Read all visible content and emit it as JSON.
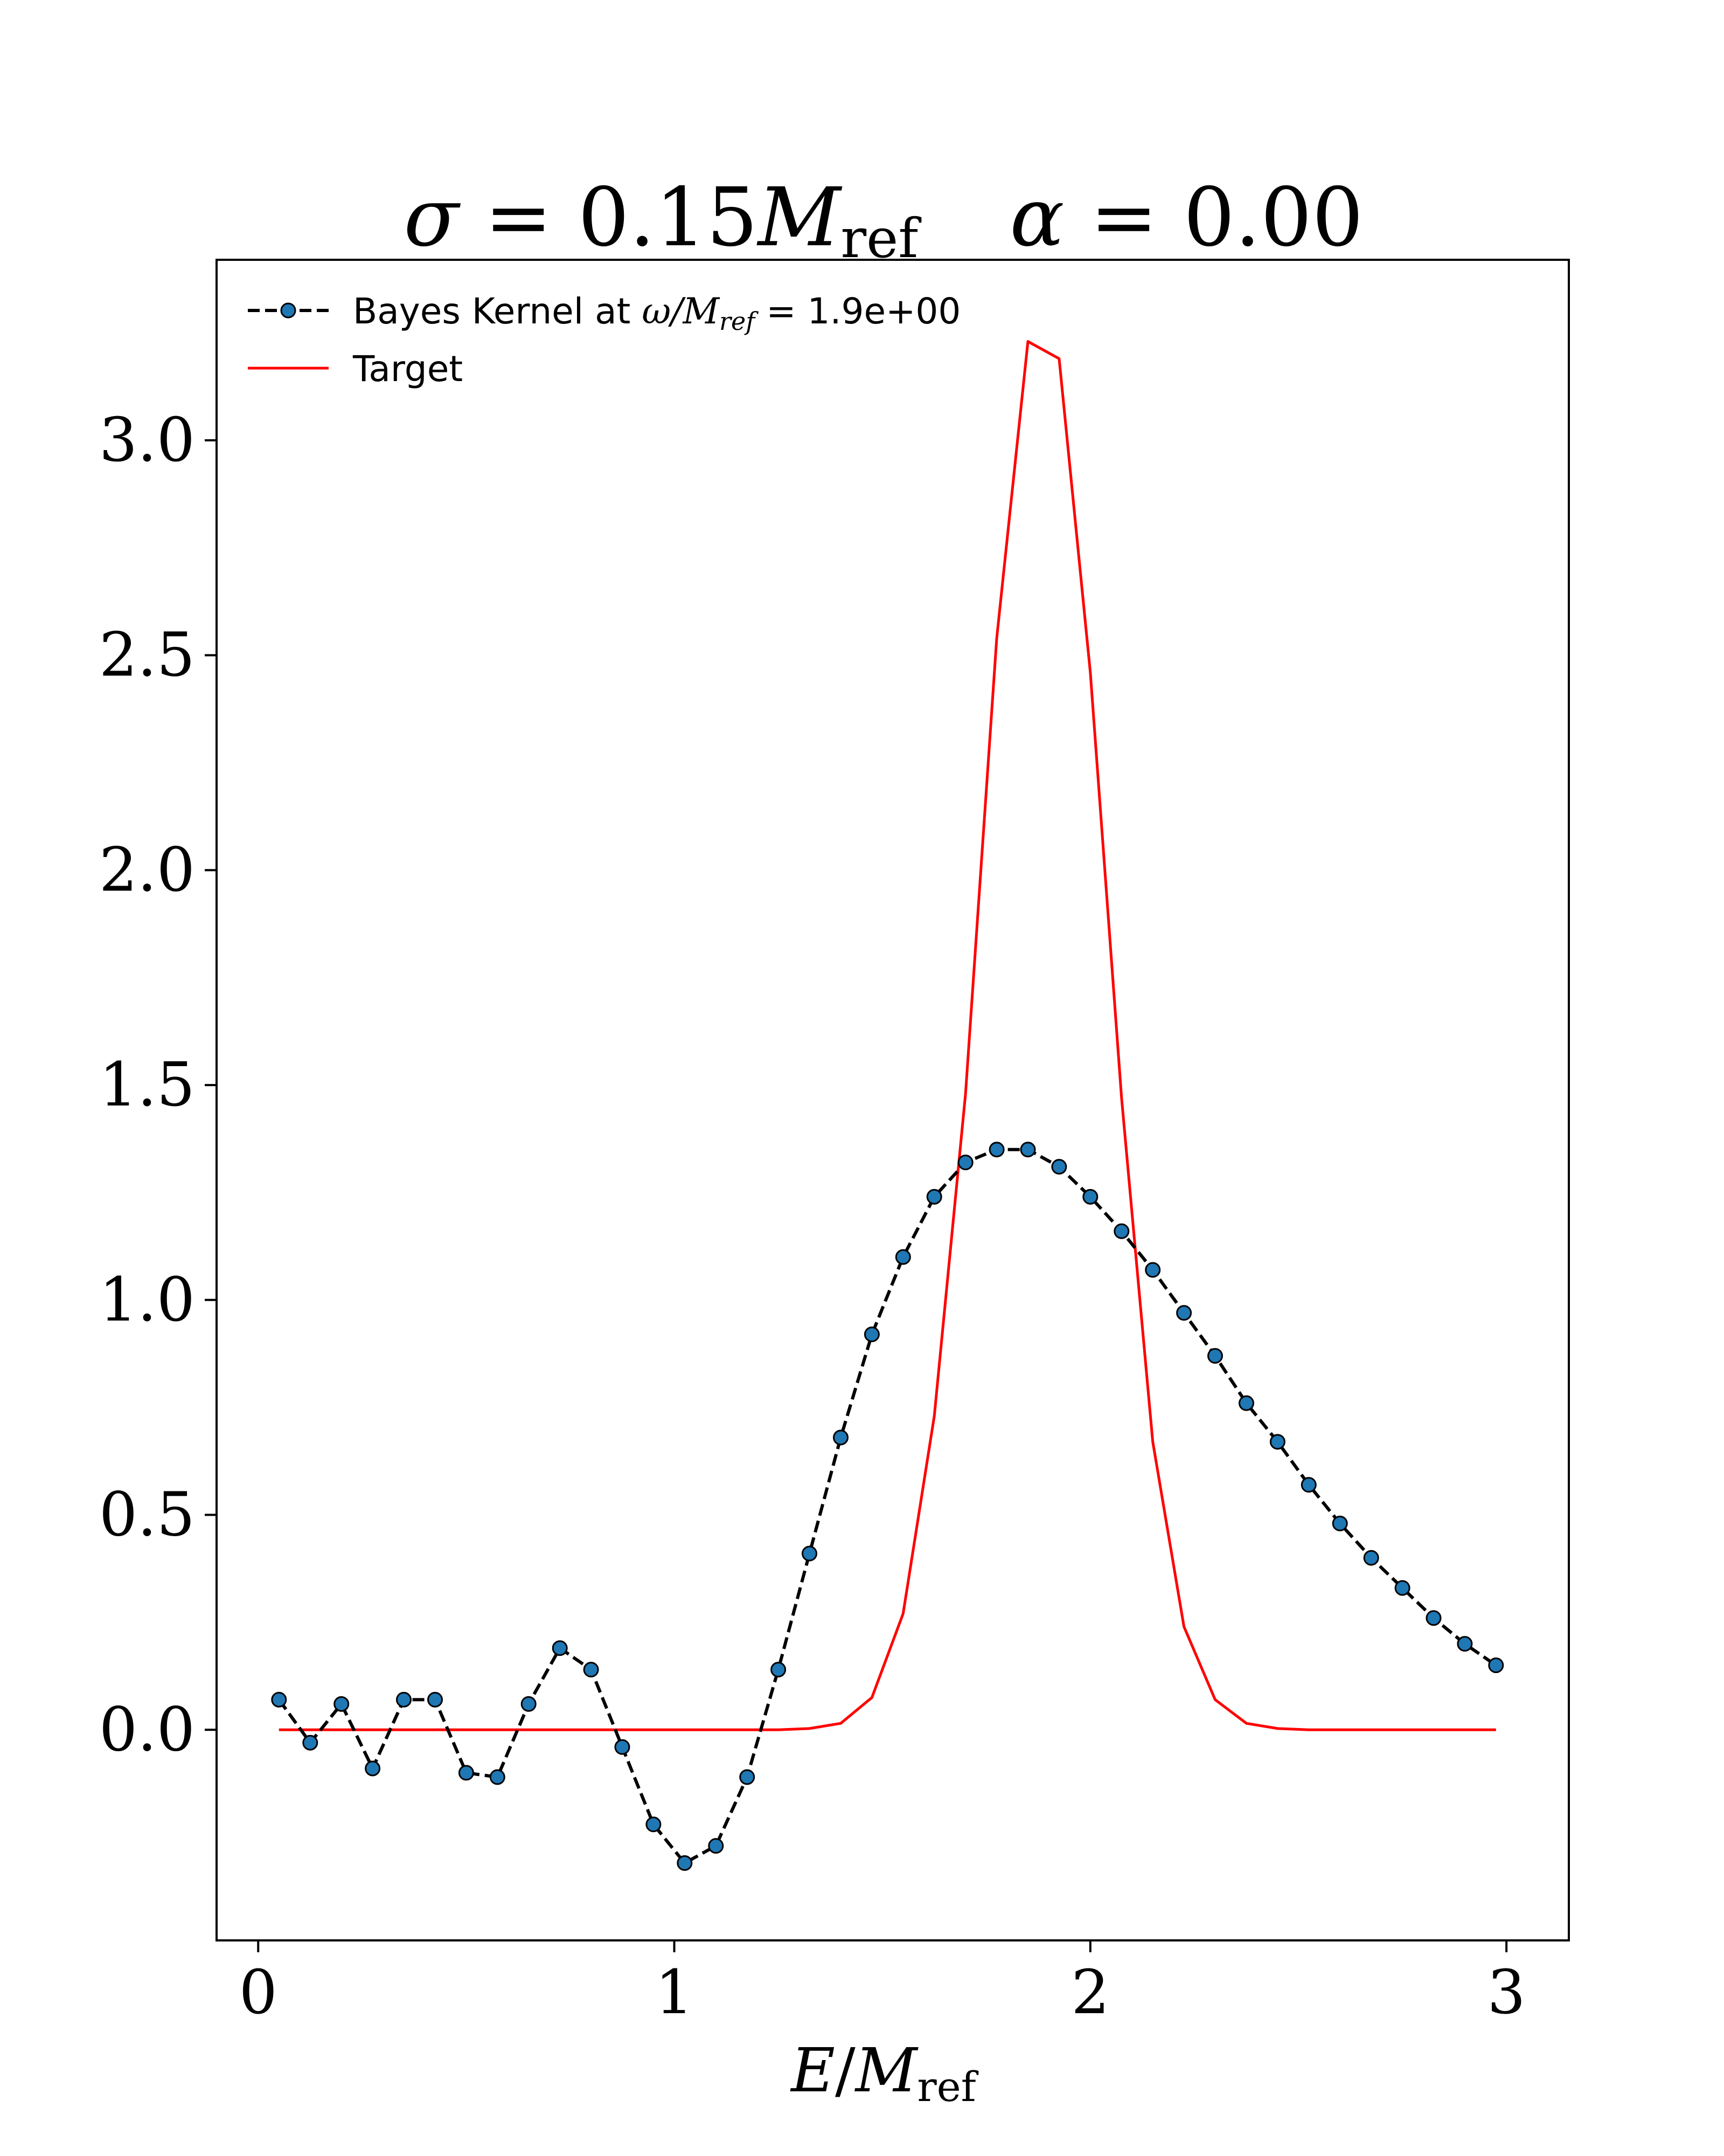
{
  "chart_data": {
    "type": "line",
    "title": "σ = 0.15M_ref    α = 0.00",
    "title_parts": {
      "sigma_symbol": "σ",
      "sigma_eq": " = 0.15",
      "M": "M",
      "ref_sub": "ref",
      "alpha_symbol": "α",
      "alpha_eq": " = 0.00"
    },
    "xlabel": "E/M_ref",
    "xlabel_parts": {
      "E": "E",
      "slash": "/",
      "M": "M",
      "ref_sub": "ref"
    },
    "ylabel": "",
    "xlim": [
      -0.1,
      3.15
    ],
    "ylim": [
      -0.49,
      3.42
    ],
    "x_ticks": [
      0,
      1,
      2,
      3
    ],
    "x_tick_labels": [
      "0",
      "1",
      "2",
      "3"
    ],
    "y_ticks": [
      0.0,
      0.5,
      1.0,
      1.5,
      2.0,
      2.5,
      3.0
    ],
    "y_tick_labels": [
      "0.0",
      "0.5",
      "1.0",
      "1.5",
      "2.0",
      "2.5",
      "3.0"
    ],
    "grid": false,
    "legend_position": "top-left",
    "legend": {
      "kernel_prefix": "Bayes Kernel at ",
      "kernel_math": "ω/M",
      "kernel_sub": "ref",
      "kernel_suffix": " = 1.9e+00",
      "target": "Target"
    },
    "series": [
      {
        "name": "Bayes Kernel at ω/M_ref = 1.9e+00",
        "color": "#000000",
        "marker_color": "#1f77b4",
        "style": "dashed-with-markers",
        "x": [
          0.05,
          0.125,
          0.2,
          0.275,
          0.35,
          0.425,
          0.5,
          0.575,
          0.65,
          0.725,
          0.8,
          0.875,
          0.95,
          1.025,
          1.1,
          1.175,
          1.25,
          1.325,
          1.4,
          1.475,
          1.55,
          1.625,
          1.7,
          1.775,
          1.85,
          1.925,
          2.0,
          2.075,
          2.15,
          2.225,
          2.3,
          2.375,
          2.45,
          2.525,
          2.6,
          2.675,
          2.75,
          2.825,
          2.9,
          2.975
        ],
        "y": [
          0.07,
          -0.03,
          0.06,
          -0.09,
          0.07,
          0.07,
          -0.1,
          -0.11,
          0.06,
          0.19,
          0.14,
          -0.04,
          -0.22,
          -0.31,
          -0.27,
          -0.11,
          0.14,
          0.41,
          0.68,
          0.92,
          1.1,
          1.24,
          1.32,
          1.35,
          1.35,
          1.31,
          1.24,
          1.16,
          1.07,
          0.97,
          0.87,
          0.76,
          0.67,
          0.57,
          0.48,
          0.4,
          0.33,
          0.26,
          0.2,
          0.15
        ]
      },
      {
        "name": "Target",
        "color": "#ff0000",
        "style": "solid",
        "x": [
          0.05,
          0.125,
          0.2,
          0.275,
          0.35,
          0.425,
          0.5,
          0.575,
          0.65,
          0.725,
          0.8,
          0.875,
          0.95,
          1.025,
          1.1,
          1.175,
          1.25,
          1.325,
          1.4,
          1.475,
          1.55,
          1.625,
          1.7,
          1.775,
          1.85,
          1.925,
          2.0,
          2.075,
          2.15,
          2.225,
          2.3,
          2.375,
          2.45,
          2.525,
          2.6,
          2.675,
          2.75,
          2.825,
          2.9,
          2.975
        ],
        "y": [
          0,
          0,
          0,
          0,
          0,
          0,
          0,
          0,
          0,
          0,
          0,
          0,
          0,
          0,
          0,
          0,
          0,
          0.003,
          0.015,
          0.075,
          0.27,
          0.73,
          1.48,
          2.54,
          3.23,
          3.19,
          2.46,
          1.47,
          0.67,
          0.24,
          0.07,
          0.015,
          0.003,
          0,
          0,
          0,
          0,
          0,
          0,
          0
        ]
      }
    ]
  }
}
